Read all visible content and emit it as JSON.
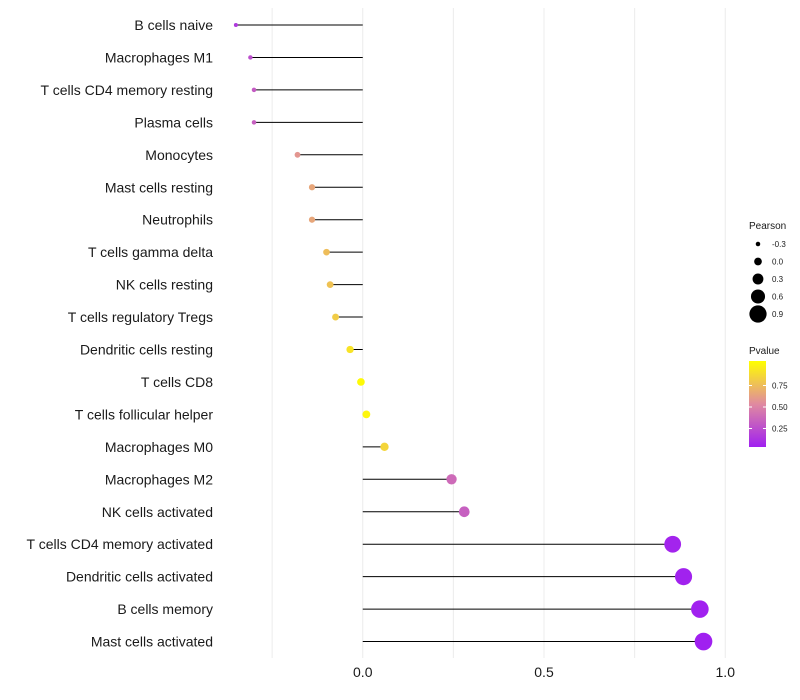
{
  "chart_data": {
    "type": "lollipop",
    "title": "",
    "xlabel": "",
    "ylabel": "",
    "xlim": [
      -0.38,
      1.06
    ],
    "x_ticks": [
      0.0,
      0.5,
      1.0
    ],
    "x_tick_labels": [
      "0.0",
      "0.5",
      "1.0"
    ],
    "grid": true,
    "categories": [
      "B cells naive",
      "Macrophages M1",
      "T cells CD4 memory resting",
      "Plasma cells",
      "Monocytes",
      "Mast cells resting",
      "Neutrophils",
      "T cells gamma delta",
      "NK cells resting",
      "T cells regulatory  Tregs",
      "Dendritic cells resting",
      "T cells CD8",
      "T cells follicular helper",
      "Macrophages M0",
      "Macrophages M2",
      "NK cells activated",
      "T cells CD4 memory activated",
      "Dendritic cells activated",
      "B cells memory",
      "Mast cells activated"
    ],
    "pearson": [
      -0.35,
      -0.31,
      -0.3,
      -0.3,
      -0.18,
      -0.14,
      -0.14,
      -0.1,
      -0.09,
      -0.075,
      -0.035,
      -0.005,
      0.01,
      0.06,
      0.245,
      0.28,
      0.855,
      0.885,
      0.93,
      0.94
    ],
    "pvalue": [
      0.12,
      0.22,
      0.28,
      0.3,
      0.55,
      0.62,
      0.62,
      0.72,
      0.74,
      0.78,
      0.88,
      0.98,
      0.96,
      0.82,
      0.35,
      0.3,
      0.02,
      0.01,
      0.004,
      0.002
    ],
    "legend_size": {
      "title": "Pearson",
      "labels": [
        "-0.3",
        "0.0",
        "0.3",
        "0.6",
        "0.9"
      ],
      "values": [
        -0.3,
        0.0,
        0.3,
        0.6,
        0.9
      ]
    },
    "legend_color": {
      "title": "Pvalue",
      "labels": [
        "0.75",
        "0.50",
        "0.25"
      ],
      "values": [
        0.75,
        0.5,
        0.25
      ],
      "range": [
        0.0,
        1.0
      ],
      "low_color": "#a020f0",
      "mid_color": "#e08aa0",
      "high_color": "#ffff00"
    },
    "legend_position": "right"
  }
}
